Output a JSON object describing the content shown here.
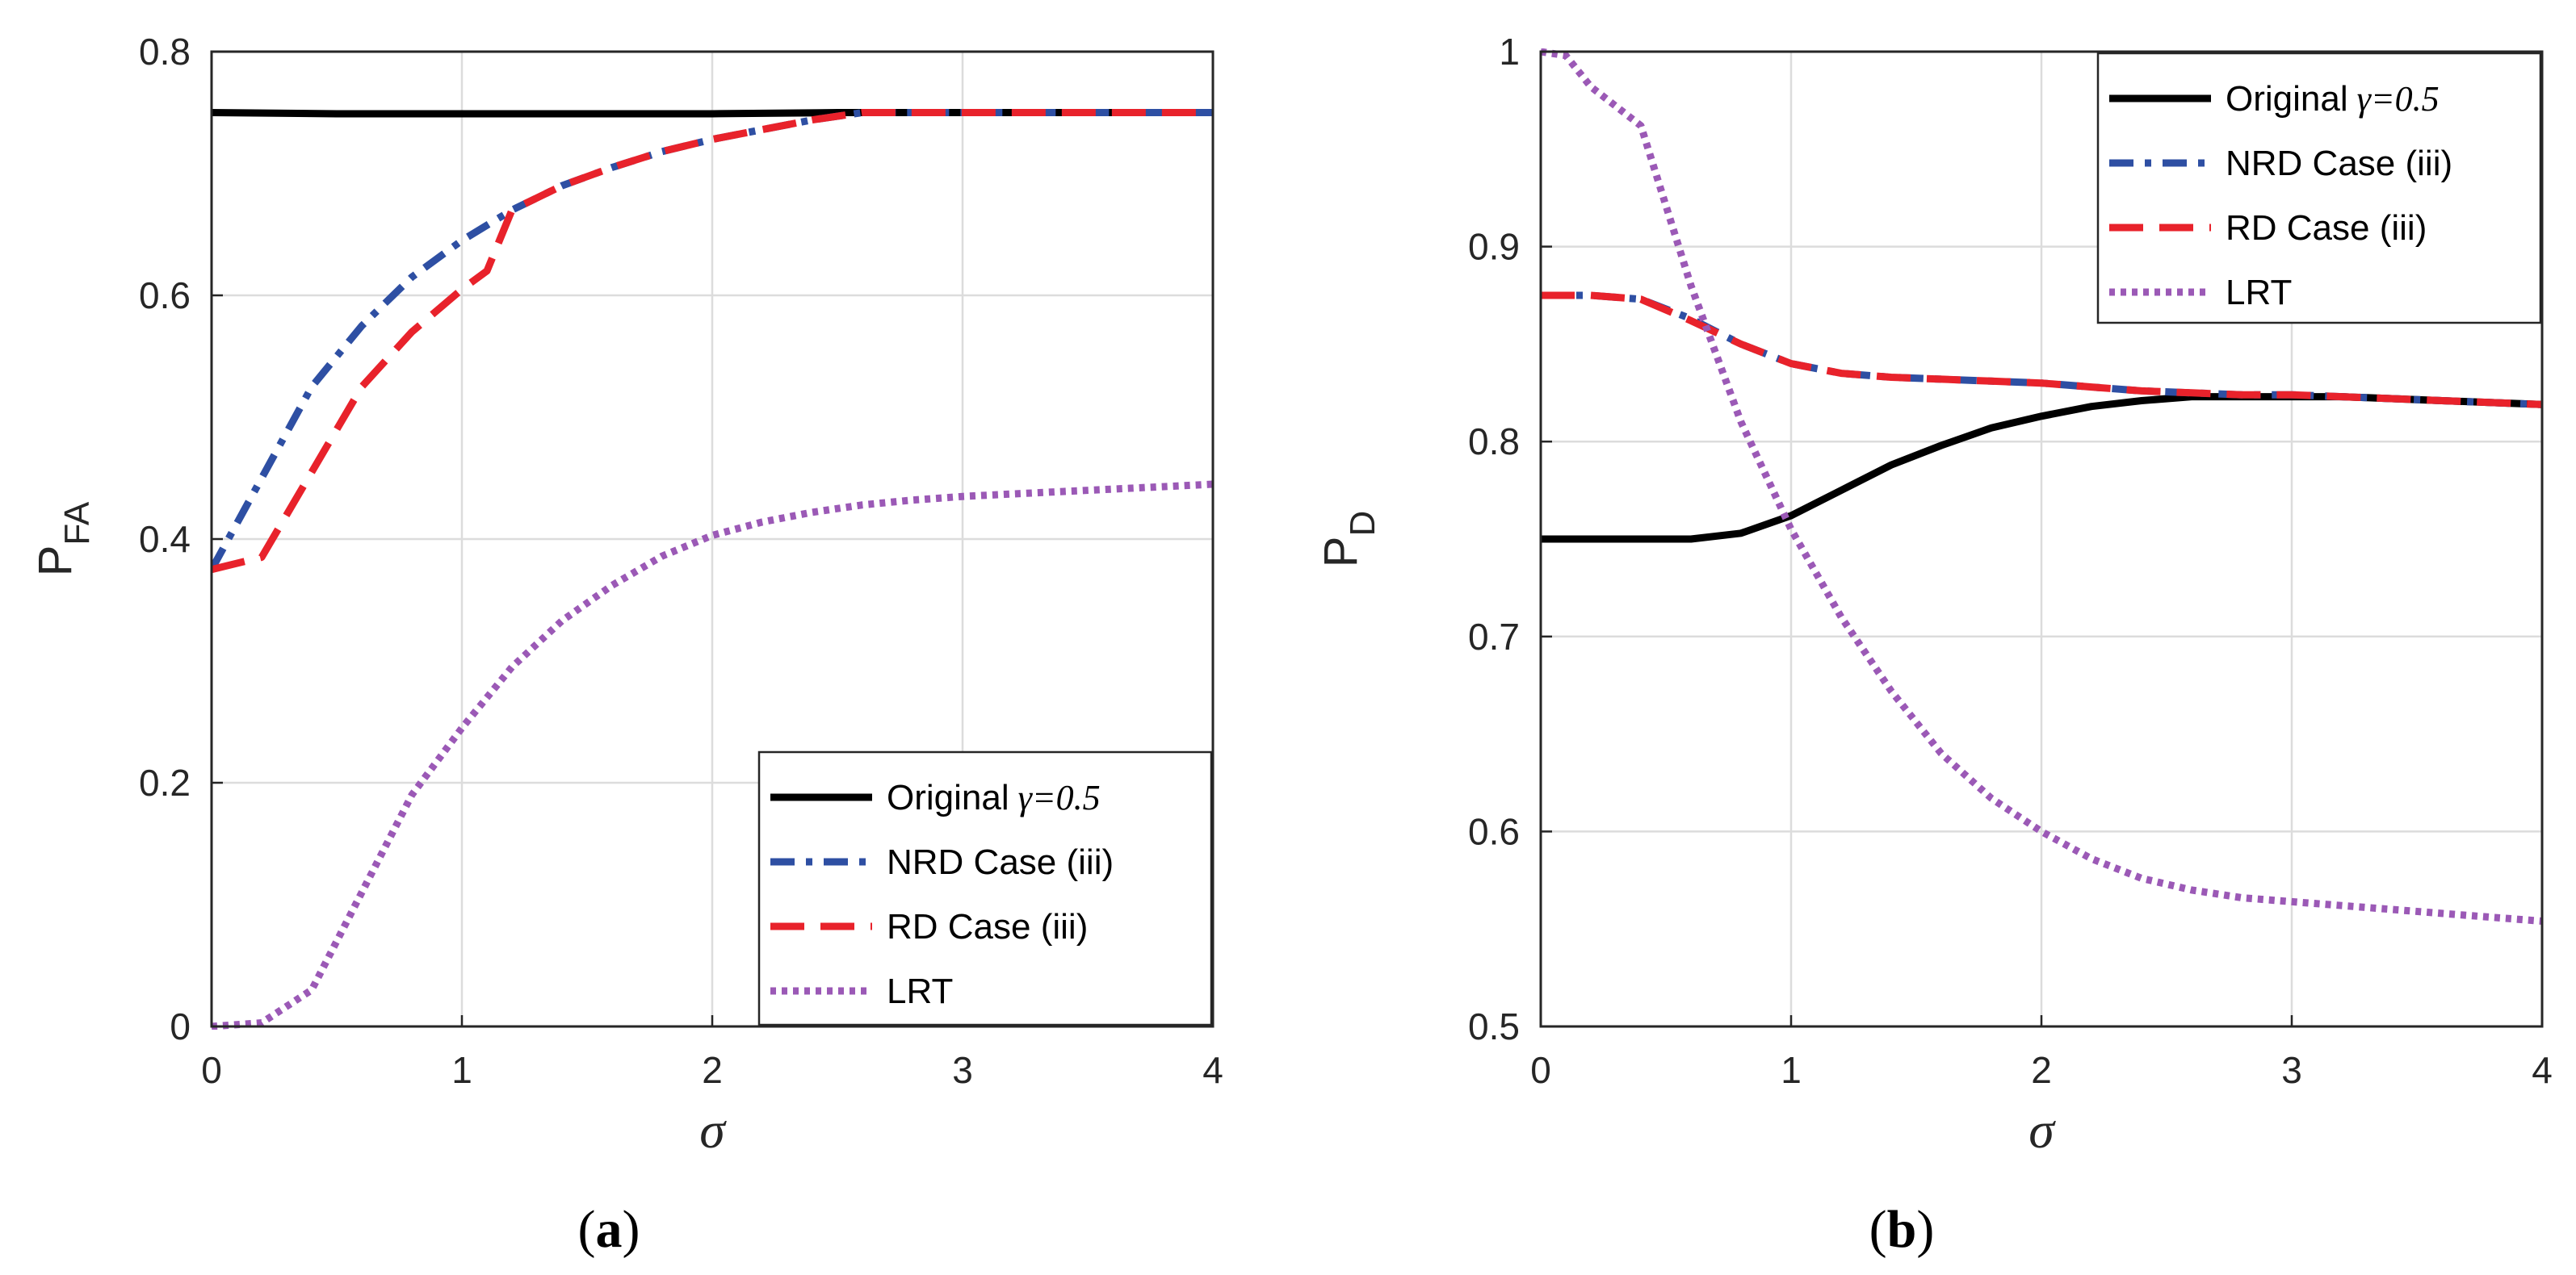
{
  "chart_data": [
    {
      "type": "line",
      "panel": "a",
      "caption_letter": "a",
      "ylabel_main": "P",
      "ylabel_sub": "FA",
      "xlabel": "σ",
      "xlim": [
        0,
        4
      ],
      "ylim": [
        0,
        0.8
      ],
      "xticks": [
        "0",
        "1",
        "2",
        "3",
        "4"
      ],
      "yticks": [
        "0",
        "0.2",
        "0.4",
        "0.6",
        "0.8"
      ],
      "grid": true,
      "legend_position": "bottom-right",
      "series": [
        {
          "name": "Original",
          "name_suffix": "γ=0.5",
          "color": "#000000",
          "style": "solid",
          "x": [
            0,
            0.5,
            1,
            1.5,
            2,
            2.5,
            3,
            3.5,
            4
          ],
          "y": [
            0.75,
            0.749,
            0.749,
            0.749,
            0.749,
            0.75,
            0.75,
            0.75,
            0.75
          ]
        },
        {
          "name": "NRD Case (iii)",
          "name_suffix": "",
          "color": "#2E4FA3",
          "style": "dashdot",
          "x": [
            0,
            0.2,
            0.4,
            0.6,
            0.8,
            1.0,
            1.2,
            1.4,
            1.6,
            1.8,
            2.0,
            2.2,
            2.4,
            2.6,
            3.0,
            3.5,
            4.0
          ],
          "y": [
            0.375,
            0.45,
            0.525,
            0.575,
            0.615,
            0.645,
            0.67,
            0.69,
            0.705,
            0.718,
            0.728,
            0.736,
            0.744,
            0.75,
            0.75,
            0.75,
            0.75
          ]
        },
        {
          "name": "RD Case (iii)",
          "name_suffix": "",
          "color": "#E8222B",
          "style": "dashed",
          "x": [
            0,
            0.2,
            0.4,
            0.6,
            0.8,
            1.0,
            1.1,
            1.15,
            1.2,
            1.4,
            1.6,
            1.8,
            2.0,
            2.2,
            2.4,
            2.6,
            3.0,
            3.5,
            4.0
          ],
          "y": [
            0.375,
            0.385,
            0.455,
            0.525,
            0.57,
            0.605,
            0.62,
            0.645,
            0.67,
            0.69,
            0.705,
            0.718,
            0.728,
            0.736,
            0.744,
            0.75,
            0.75,
            0.75,
            0.75
          ]
        },
        {
          "name": "LRT",
          "name_suffix": "",
          "color": "#9B59B6",
          "style": "dotted",
          "x": [
            0,
            0.2,
            0.4,
            0.6,
            0.8,
            1.0,
            1.2,
            1.4,
            1.6,
            1.8,
            2.0,
            2.2,
            2.4,
            2.6,
            2.8,
            3.0,
            3.2,
            3.4,
            3.6,
            3.8,
            4.0
          ],
          "y": [
            0,
            0.003,
            0.03,
            0.11,
            0.19,
            0.245,
            0.295,
            0.333,
            0.362,
            0.386,
            0.403,
            0.414,
            0.422,
            0.428,
            0.432,
            0.435,
            0.437,
            0.439,
            0.441,
            0.443,
            0.445
          ]
        }
      ]
    },
    {
      "type": "line",
      "panel": "b",
      "caption_letter": "b",
      "ylabel_main": "P",
      "ylabel_sub": "D",
      "xlabel": "σ",
      "xlim": [
        0,
        4
      ],
      "ylim": [
        0.5,
        1
      ],
      "xticks": [
        "0",
        "1",
        "2",
        "3",
        "4"
      ],
      "yticks": [
        "0.5",
        "0.6",
        "0.7",
        "0.8",
        "0.9",
        "1"
      ],
      "grid": true,
      "legend_position": "top-right",
      "series": [
        {
          "name": "Original",
          "name_suffix": "γ=0.5",
          "color": "#000000",
          "style": "solid",
          "x": [
            0,
            0.2,
            0.4,
            0.6,
            0.8,
            1.0,
            1.2,
            1.4,
            1.6,
            1.8,
            2.0,
            2.2,
            2.4,
            2.6,
            2.8,
            3.0,
            3.2,
            3.4,
            3.6,
            3.8,
            4.0
          ],
          "y": [
            0.75,
            0.75,
            0.75,
            0.75,
            0.753,
            0.762,
            0.775,
            0.788,
            0.798,
            0.807,
            0.813,
            0.818,
            0.821,
            0.823,
            0.823,
            0.823,
            0.823,
            0.822,
            0.821,
            0.82,
            0.819
          ]
        },
        {
          "name": "NRD Case (iii)",
          "name_suffix": "",
          "color": "#2E4FA3",
          "style": "dashdot",
          "x": [
            0,
            0.2,
            0.4,
            0.6,
            0.8,
            1.0,
            1.2,
            1.4,
            1.6,
            1.8,
            2.0,
            2.2,
            2.4,
            2.6,
            2.8,
            3.0,
            3.2,
            3.4,
            3.6,
            3.8,
            4.0
          ],
          "y": [
            0.875,
            0.875,
            0.873,
            0.863,
            0.85,
            0.84,
            0.835,
            0.833,
            0.832,
            0.831,
            0.83,
            0.828,
            0.826,
            0.825,
            0.824,
            0.824,
            0.823,
            0.822,
            0.821,
            0.82,
            0.819
          ]
        },
        {
          "name": "RD Case (iii)",
          "name_suffix": "",
          "color": "#E8222B",
          "style": "dashed",
          "x": [
            0,
            0.2,
            0.4,
            0.6,
            0.8,
            1.0,
            1.2,
            1.4,
            1.6,
            1.8,
            2.0,
            2.2,
            2.4,
            2.6,
            2.8,
            3.0,
            3.2,
            3.4,
            3.6,
            3.8,
            4.0
          ],
          "y": [
            0.875,
            0.875,
            0.873,
            0.862,
            0.85,
            0.84,
            0.835,
            0.833,
            0.832,
            0.831,
            0.83,
            0.828,
            0.826,
            0.825,
            0.824,
            0.824,
            0.823,
            0.822,
            0.821,
            0.82,
            0.819
          ]
        },
        {
          "name": "LRT",
          "name_suffix": "",
          "color": "#9B59B6",
          "style": "dotted",
          "x": [
            0,
            0.1,
            0.2,
            0.4,
            0.6,
            0.8,
            1.0,
            1.2,
            1.4,
            1.6,
            1.8,
            2.0,
            2.2,
            2.4,
            2.6,
            2.8,
            3.0,
            3.2,
            3.4,
            3.6,
            3.8,
            4.0
          ],
          "y": [
            1.0,
            0.998,
            0.982,
            0.962,
            0.88,
            0.81,
            0.755,
            0.71,
            0.672,
            0.64,
            0.617,
            0.6,
            0.586,
            0.576,
            0.57,
            0.566,
            0.564,
            0.562,
            0.56,
            0.558,
            0.556,
            0.554
          ]
        }
      ]
    }
  ]
}
